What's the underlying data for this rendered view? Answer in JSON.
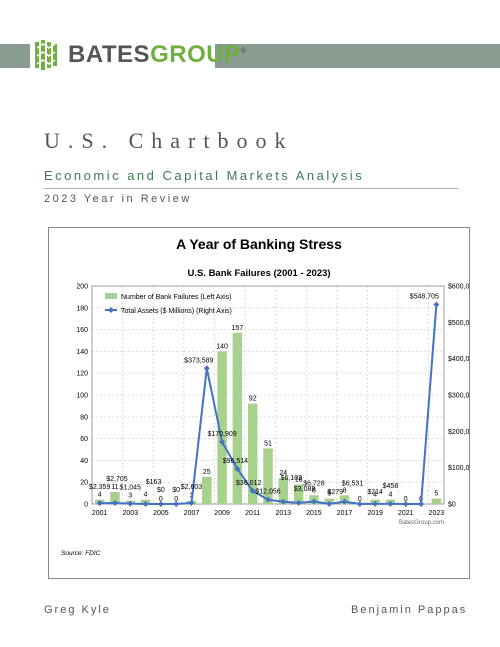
{
  "brand": {
    "name_part1": "BATES",
    "name_part2": "GROUP",
    "registered": "®",
    "accent": "#6fae3f",
    "band_color": "#8a9b8f"
  },
  "document": {
    "title": "U.S. Chartbook",
    "subtitle": "Economic and Capital Markets Analysis",
    "edition": "2023 Year in Review"
  },
  "authors": {
    "left": "Greg Kyle",
    "right": "Benjamin Pappas"
  },
  "chart_data": {
    "type": "bar",
    "headline": "A Year of Banking Stress",
    "title": "U.S. Bank Failures (2001 - 2023)",
    "source": "Source: FDIC",
    "watermark": "BatesGroup.com",
    "categories": [
      2001,
      2002,
      2003,
      2004,
      2005,
      2006,
      2007,
      2008,
      2009,
      2010,
      2011,
      2012,
      2013,
      2014,
      2015,
      2016,
      2017,
      2018,
      2019,
      2020,
      2021,
      2022,
      2023
    ],
    "x_tick_labels": [
      "2001",
      "2003",
      "2005",
      "2007",
      "2009",
      "2011",
      "2013",
      "2015",
      "2017",
      "2019",
      "2021",
      "2023"
    ],
    "ylim_left": [
      0,
      200
    ],
    "left_ticks": [
      "0",
      "20",
      "40",
      "60",
      "80",
      "100",
      "120",
      "140",
      "160",
      "180",
      "200"
    ],
    "ylim_right": [
      0,
      600000
    ],
    "right_ticks": [
      "$0",
      "$100,000",
      "$200,000",
      "$300,000",
      "$400,000",
      "$500,000",
      "$600,000"
    ],
    "grid": true,
    "legend_position": "top-left",
    "series": [
      {
        "name": "Number of Bank Failures (Left Axis)",
        "type": "bar",
        "axis": "left",
        "color": "#a9d18e",
        "values": [
          4,
          11,
          3,
          4,
          0,
          0,
          3,
          25,
          140,
          157,
          92,
          51,
          24,
          18,
          8,
          5,
          8,
          0,
          4,
          4,
          0,
          0,
          5
        ],
        "labels": [
          "4",
          "11",
          "3",
          "4",
          "0",
          "0",
          "3",
          "25",
          "140",
          "157",
          "92",
          "51",
          "24",
          "18",
          "8",
          "5",
          "8",
          "0",
          "4",
          "4",
          "0",
          "0",
          "5"
        ]
      },
      {
        "name": "Total Assets ($ Millions) (Right Axis)",
        "type": "line",
        "axis": "right",
        "color": "#4472c4",
        "values": [
          2359,
          2705,
          1045,
          163,
          0,
          0,
          2603,
          373589,
          170909,
          96514,
          36012,
          12056,
          6102,
          3088,
          6728,
          279,
          6531,
          0,
          214,
          458,
          0,
          0,
          548705
        ],
        "labels": [
          "$2,359",
          "$2,705",
          "$1,045",
          "$163",
          "$0",
          "$0",
          "$2,603",
          "$373,589",
          "$170,909",
          "$96,514",
          "$36,012",
          "$12,056",
          "$6,102",
          "$3,088",
          "$6,728",
          "$279",
          "$6,531",
          "",
          "$214",
          "$458",
          "",
          "",
          "$548,705"
        ]
      }
    ]
  }
}
